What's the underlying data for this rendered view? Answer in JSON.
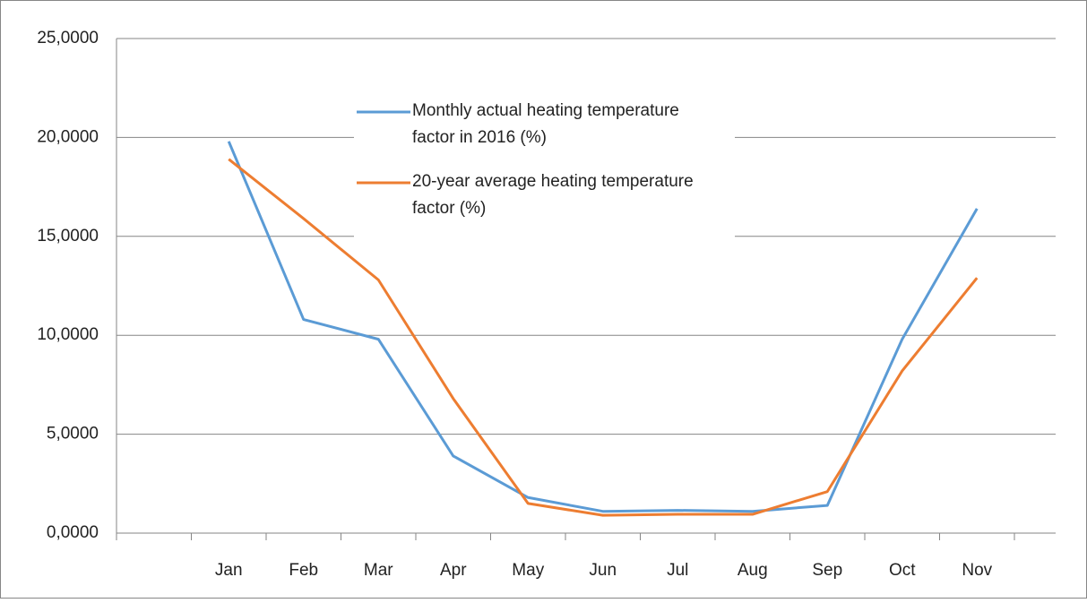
{
  "chart_data": {
    "type": "line",
    "categories": [
      null,
      "Jan",
      "Feb",
      "Mar",
      "Apr",
      "May",
      "Jun",
      "Jul",
      "Aug",
      "Sep",
      "Oct",
      "Nov"
    ],
    "series": [
      {
        "name": "Monthly actual heating temperature factor in 2016 (%)",
        "color": "#5b9bd5",
        "values": [
          null,
          19.8,
          10.8,
          9.8,
          3.9,
          1.8,
          1.1,
          1.15,
          1.1,
          1.4,
          9.8,
          16.4
        ]
      },
      {
        "name": "20-year average heating temperature factor (%)",
        "color": "#ed7d31",
        "values": [
          null,
          18.9,
          15.9,
          12.8,
          6.8,
          1.5,
          0.9,
          0.95,
          0.95,
          2.1,
          8.2,
          12.9
        ]
      }
    ],
    "ylim": [
      0,
      25
    ],
    "yticks": [
      {
        "value": 0,
        "label": "0,0000"
      },
      {
        "value": 5,
        "label": "5,0000"
      },
      {
        "value": 10,
        "label": "10,0000"
      },
      {
        "value": 15,
        "label": "15,0000"
      },
      {
        "value": 20,
        "label": "20,0000"
      },
      {
        "value": 25,
        "label": "25,0000"
      }
    ],
    "grid": true
  }
}
